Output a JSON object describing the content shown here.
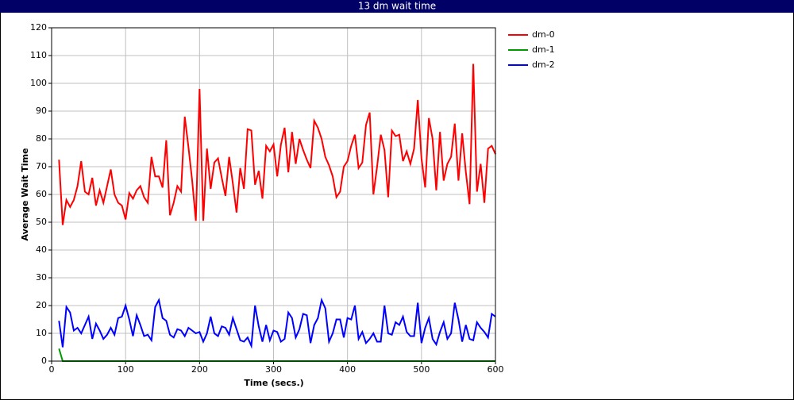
{
  "chart_data": {
    "type": "line",
    "title": "13 dm wait time",
    "x_label": "Time (secs.)",
    "y_label": "Average Wait Time",
    "x": [
      10,
      15,
      20,
      25,
      30,
      35,
      40,
      45,
      50,
      55,
      60,
      65,
      70,
      75,
      80,
      85,
      90,
      95,
      100,
      105,
      110,
      115,
      120,
      125,
      130,
      135,
      140,
      145,
      150,
      155,
      160,
      165,
      170,
      175,
      180,
      185,
      190,
      195,
      200,
      205,
      210,
      215,
      220,
      225,
      230,
      235,
      240,
      245,
      250,
      255,
      260,
      265,
      270,
      275,
      280,
      285,
      290,
      295,
      300,
      305,
      310,
      315,
      320,
      325,
      330,
      335,
      340,
      345,
      350,
      355,
      360,
      365,
      370,
      375,
      380,
      385,
      390,
      395,
      400,
      405,
      410,
      415,
      420,
      425,
      430,
      435,
      440,
      445,
      450,
      455,
      460,
      465,
      470,
      475,
      480,
      485,
      490,
      495,
      500,
      505,
      510,
      515,
      520,
      525,
      530,
      535,
      540,
      545,
      550,
      555,
      560,
      565,
      570,
      575,
      580,
      585,
      590,
      595,
      600
    ],
    "series": [
      {
        "name": "dm-0",
        "color": "#ff0000",
        "values": [
          72.5,
          49,
          58,
          55.5,
          58,
          63,
          72,
          61,
          60,
          66,
          56,
          61.5,
          57,
          63,
          69,
          60,
          57,
          56,
          51,
          60.5,
          58.5,
          61.5,
          63,
          59,
          57,
          73.5,
          66.5,
          66.5,
          62.5,
          79.5,
          52.5,
          57,
          63,
          61,
          88,
          77,
          65,
          50.5,
          98,
          50.5,
          76.5,
          62,
          71.5,
          73,
          66,
          59.5,
          73.5,
          64,
          53.5,
          69.5,
          62,
          83.5,
          83,
          63.5,
          68.5,
          58.5,
          77.5,
          75.5,
          78,
          66.5,
          78,
          84,
          68,
          82.5,
          71,
          80,
          76,
          72.5,
          69.5,
          86.5,
          84,
          80,
          73.5,
          70.5,
          66.5,
          59,
          61,
          70,
          72,
          77.5,
          81.5,
          69.5,
          71.5,
          85,
          89.5,
          60,
          70,
          81.5,
          76,
          59,
          83,
          81,
          81.5,
          72,
          75.5,
          71,
          76.5,
          94,
          73,
          62.5,
          87.5,
          80,
          61.5,
          82.5,
          65,
          71,
          73.5,
          85.5,
          65,
          82,
          68,
          56.5,
          107,
          61,
          71,
          57,
          76.5,
          77.5,
          74.5
        ]
      },
      {
        "name": "dm-1",
        "color": "#009900",
        "values": [
          4.5,
          0,
          0,
          0,
          0,
          0,
          0,
          0,
          0,
          0,
          0,
          0,
          0,
          0,
          0,
          0,
          0,
          0,
          0,
          0,
          0,
          0,
          0,
          0,
          0,
          0,
          0,
          0,
          0,
          0,
          0,
          0,
          0,
          0,
          0,
          0,
          0,
          0,
          0,
          0,
          0,
          0,
          0,
          0,
          0,
          0,
          0,
          0,
          0,
          0,
          0,
          0,
          0,
          0,
          0,
          0,
          0,
          0,
          0,
          0,
          0,
          0,
          0,
          0,
          0,
          0,
          0,
          0,
          0,
          0,
          0,
          0,
          0,
          0,
          0,
          0,
          0,
          0,
          0,
          0,
          0,
          0,
          0,
          0,
          0,
          0,
          0,
          0,
          0,
          0,
          0,
          0,
          0,
          0,
          0,
          0,
          0,
          0,
          0,
          0,
          0,
          0,
          0,
          0,
          0,
          0,
          0,
          0,
          0,
          0,
          0,
          0,
          0,
          0,
          0,
          0,
          0,
          0,
          0
        ]
      },
      {
        "name": "dm-2",
        "color": "#0000ff",
        "values": [
          14.5,
          5,
          19.5,
          17.5,
          11,
          12,
          10,
          13,
          16,
          8,
          13.5,
          11,
          8,
          9.5,
          12,
          9.5,
          15.5,
          16,
          20,
          15,
          9,
          16.5,
          13,
          9,
          9.5,
          7.5,
          19.5,
          22,
          15.5,
          14.5,
          9.5,
          8.5,
          11.5,
          11,
          9,
          12,
          11,
          10,
          10.5,
          7,
          10,
          16,
          10,
          9,
          12.5,
          12,
          9.5,
          15.5,
          11.5,
          7.5,
          7,
          8.5,
          5.5,
          20,
          12.5,
          7,
          13,
          7.5,
          11,
          10.5,
          7,
          8,
          17.5,
          15.5,
          8.5,
          11.5,
          17,
          16.5,
          6.5,
          13,
          15.5,
          22,
          19,
          7,
          10,
          15,
          15,
          8.5,
          15.5,
          15,
          20,
          8,
          10.5,
          6.5,
          8,
          10,
          7,
          7,
          20,
          10,
          9.5,
          14,
          13,
          16,
          10.5,
          9,
          9,
          21,
          6.5,
          12,
          15.5,
          8,
          6,
          10.5,
          14,
          8,
          10,
          21,
          15,
          7,
          13,
          8,
          7.5,
          14,
          12,
          10.5,
          8.5,
          17,
          16
        ]
      }
    ],
    "xlim": [
      0,
      600
    ],
    "xticks": [
      0,
      100,
      200,
      300,
      400,
      500,
      600
    ],
    "ylim": [
      0,
      120
    ],
    "yticks": [
      0,
      10,
      20,
      30,
      40,
      50,
      60,
      70,
      80,
      90,
      100,
      110,
      120
    ],
    "grid": true,
    "legend": "right"
  }
}
